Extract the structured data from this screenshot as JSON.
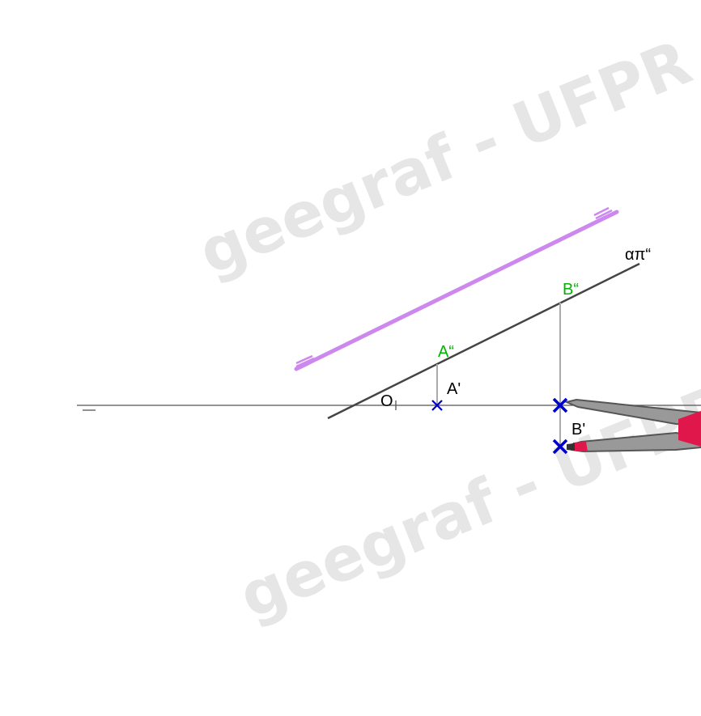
{
  "watermarks": [
    "geegraf - UFPR",
    "geegraf - UFPR"
  ],
  "labels": {
    "origin": "O",
    "a_front": "A“",
    "a_top": "A'",
    "b_front": "B“",
    "b_top": "B'",
    "plane_trace": "απ“"
  },
  "colors": {
    "front_point_label": "#00b400",
    "marker": "#0000cc",
    "plane_line": "#444444",
    "ground_line": "#555555",
    "ruler_line": "#cc88ee",
    "compass_body": "#888888",
    "compass_handle": "#e0174a"
  },
  "icons": {
    "compass": "compass-tool-icon",
    "ruler": "ruler-edge-icon"
  }
}
